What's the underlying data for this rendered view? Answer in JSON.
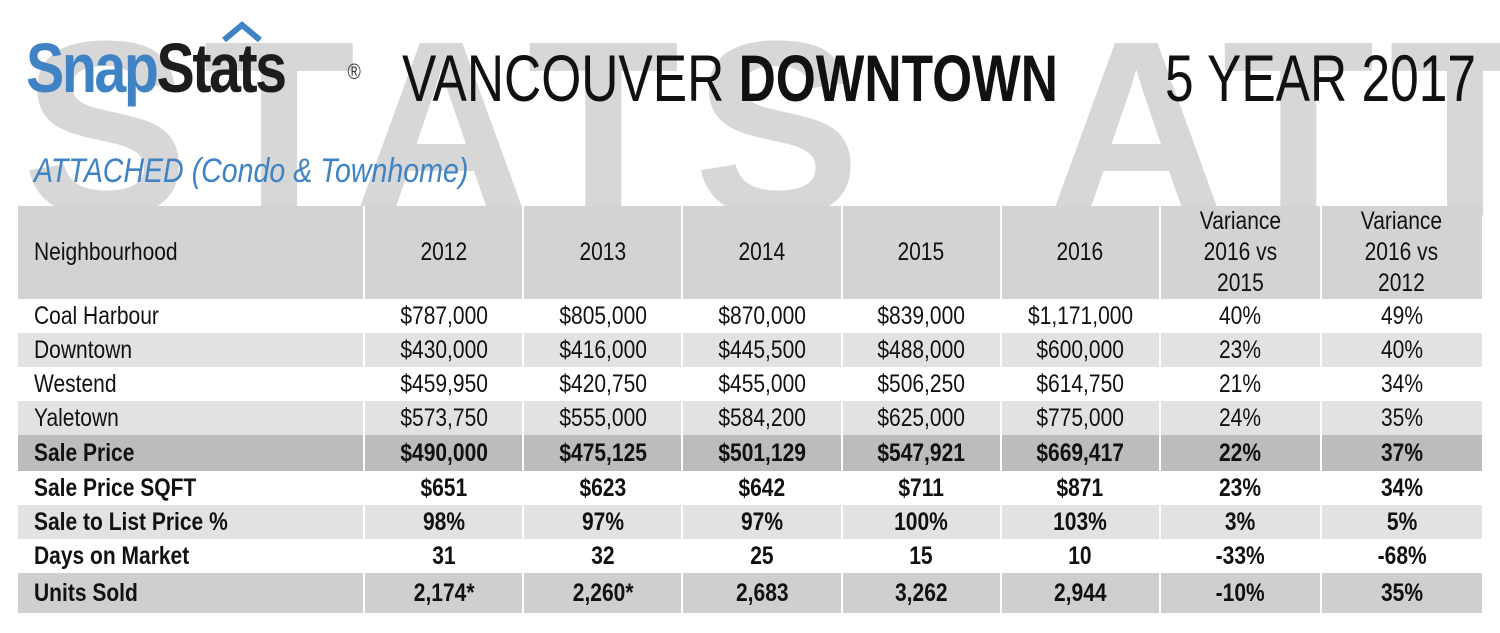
{
  "watermark": {
    "left": "STATS",
    "right": "ATT"
  },
  "brand": {
    "snap": "Snap",
    "stats": "Stats",
    "reg": "®"
  },
  "title": {
    "part1": "VANCOUVER ",
    "part2": "DOWNTOWN"
  },
  "period": "5 YEAR 2017",
  "subtitle": "ATTACHED (Condo & Townhome)",
  "colors": {
    "accent": "#3f83c5",
    "header_bg": "#d3d3d3",
    "shade": "#e2e2e2",
    "dark": "#bcbcbc"
  },
  "table": {
    "headers": [
      "Neighbourhood",
      "2012",
      "2013",
      "2014",
      "2015",
      "2016",
      [
        "Variance",
        "2016 vs",
        "2015"
      ],
      [
        "Variance",
        "2016 vs",
        "2012"
      ]
    ],
    "rows": [
      [
        "Coal Harbour",
        "$787,000",
        "$805,000",
        "$870,000",
        "$839,000",
        "$1,171,000",
        "40%",
        "49%"
      ],
      [
        "Downtown",
        "$430,000",
        "$416,000",
        "$445,500",
        "$488,000",
        "$600,000",
        "23%",
        "40%"
      ],
      [
        "Westend",
        "$459,950",
        "$420,750",
        "$455,000",
        "$506,250",
        "$614,750",
        "21%",
        "34%"
      ],
      [
        "Yaletown",
        "$573,750",
        "$555,000",
        "$584,200",
        "$625,000",
        "$775,000",
        "24%",
        "35%"
      ],
      [
        "Sale Price",
        "$490,000",
        "$475,125",
        "$501,129",
        "$547,921",
        "$669,417",
        "22%",
        "37%"
      ],
      [
        "Sale Price SQFT",
        "$651",
        "$623",
        "$642",
        "$711",
        "$871",
        "23%",
        "34%"
      ],
      [
        "Sale to List Price %",
        "98%",
        "97%",
        "97%",
        "100%",
        "103%",
        "3%",
        "5%"
      ],
      [
        "Days on Market",
        "31",
        "32",
        "25",
        "15",
        "10",
        "-33%",
        "-68%"
      ],
      [
        "Units Sold",
        "2,174*",
        "2,260*",
        "2,683",
        "3,262",
        "2,944",
        "-10%",
        "35%"
      ]
    ]
  }
}
